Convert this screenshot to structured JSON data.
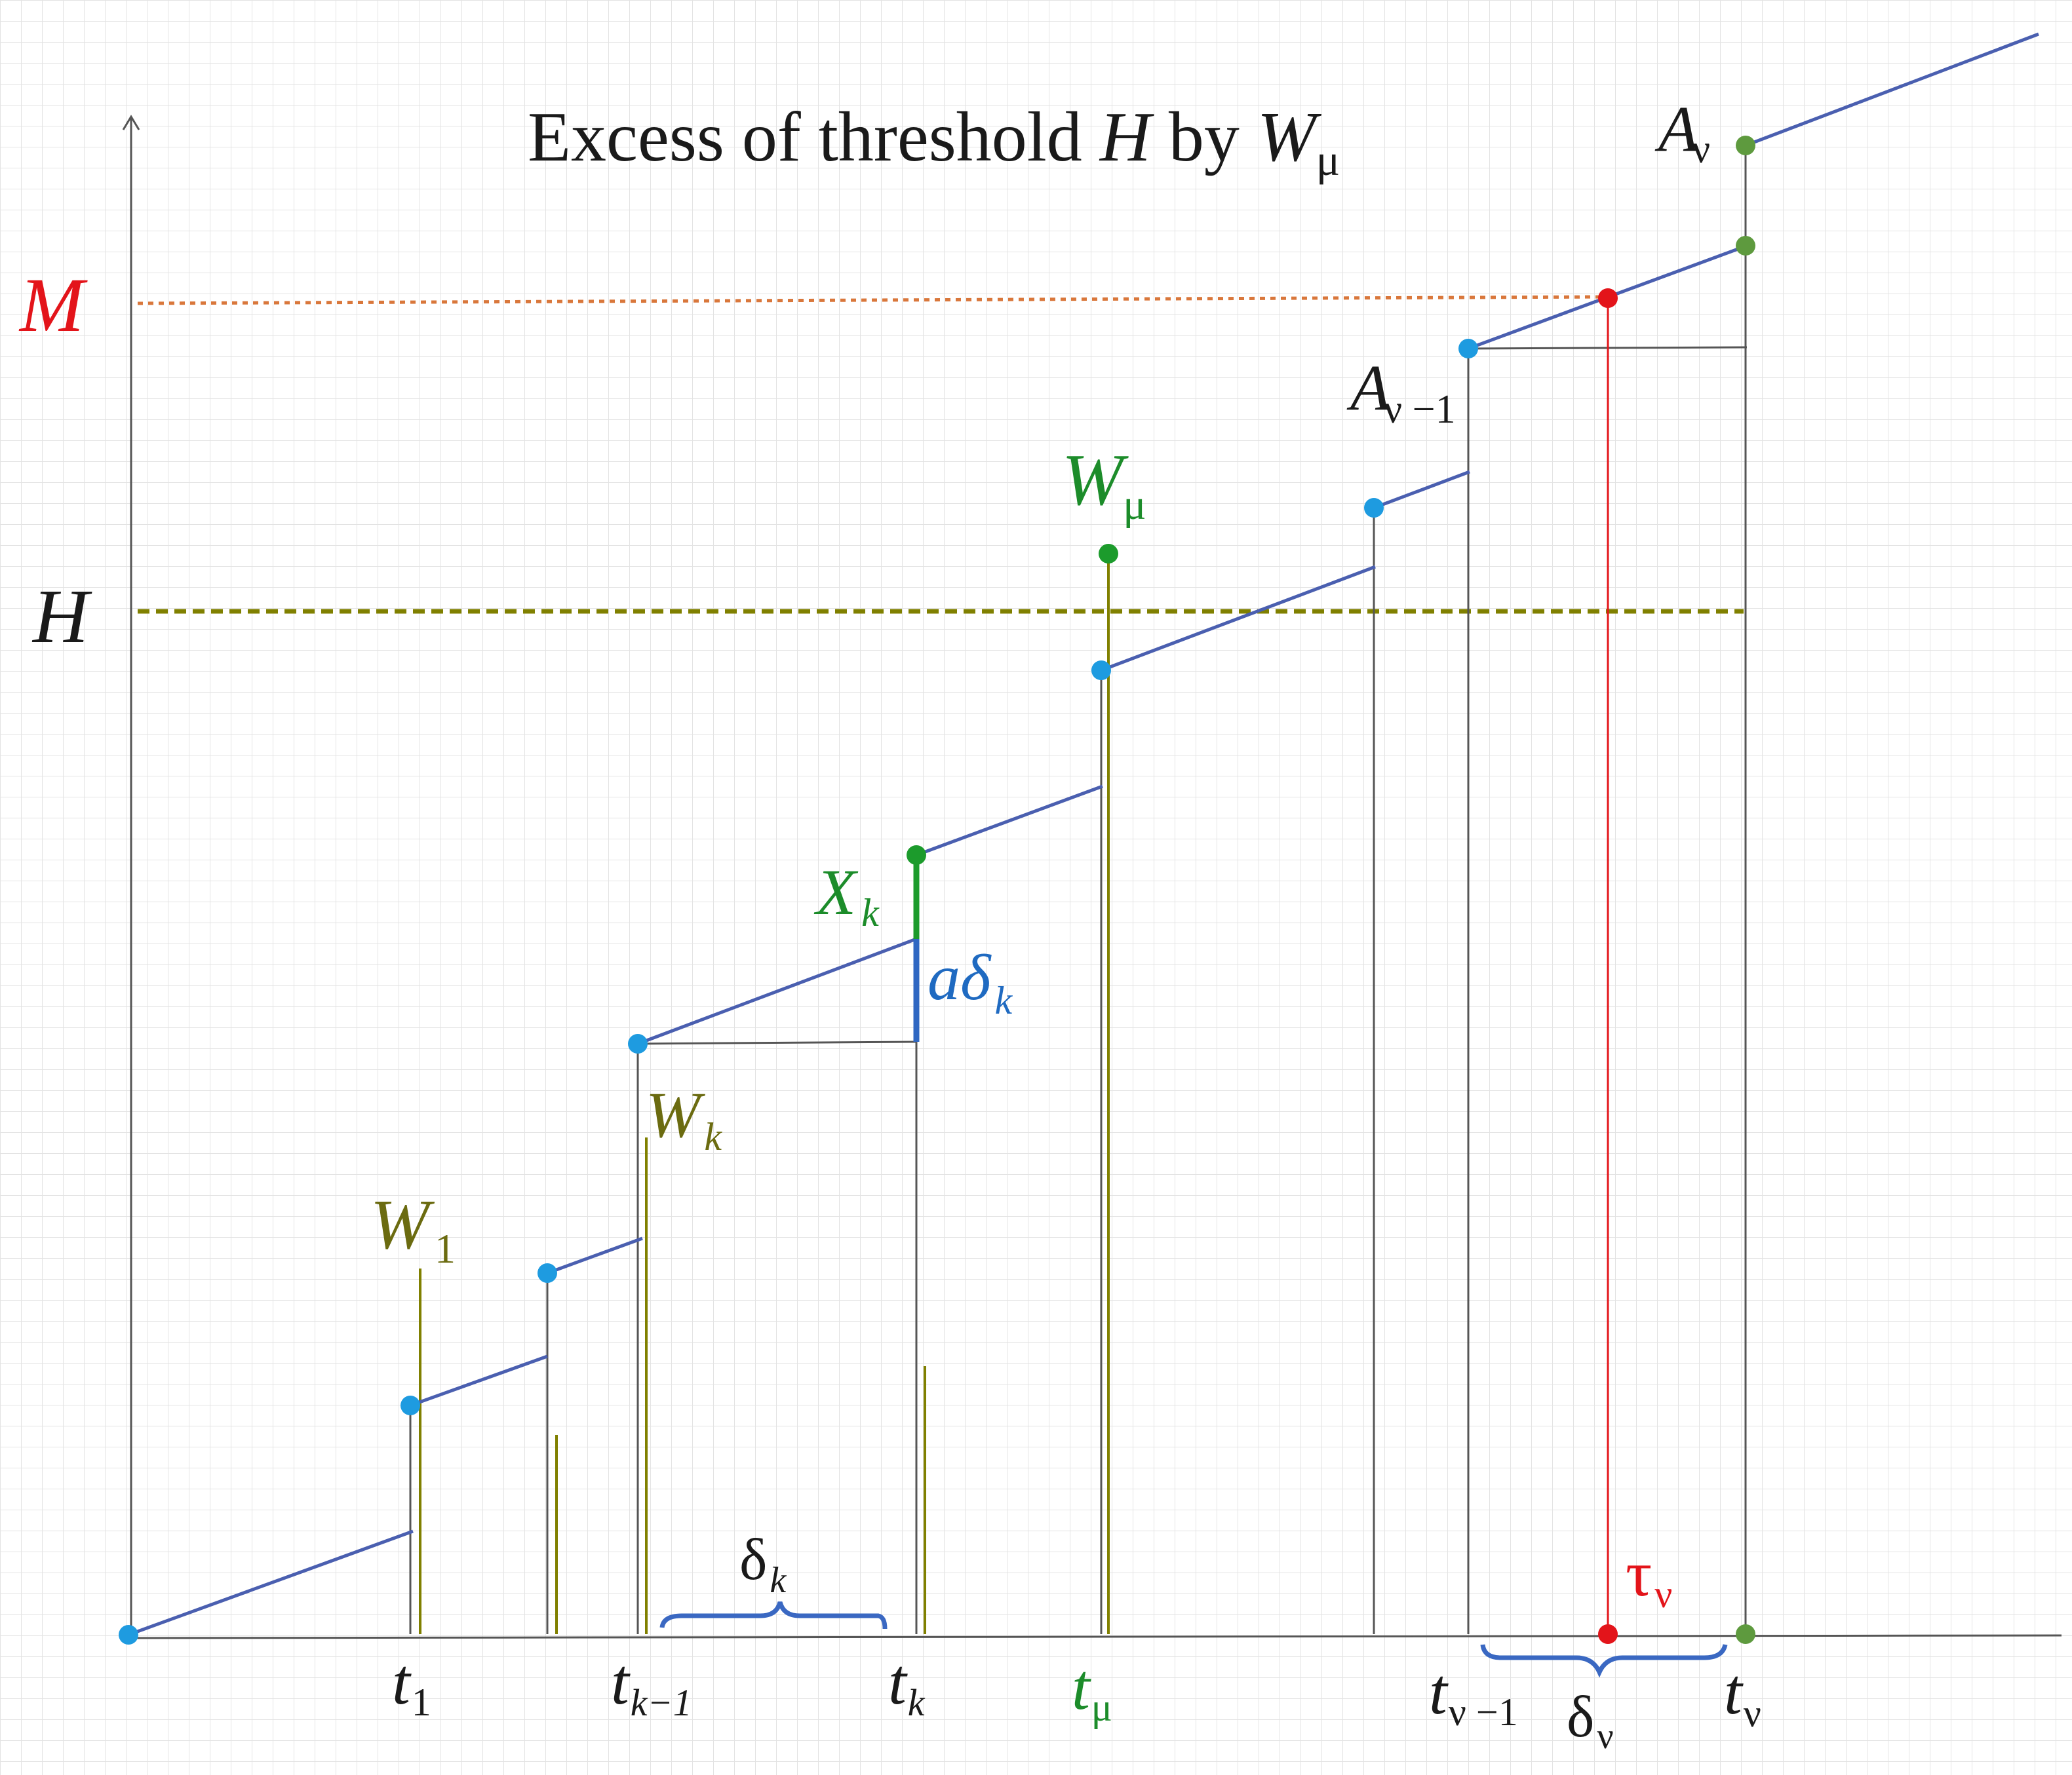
{
  "title": {
    "text_prefix": "Excess of threshold ",
    "var_h": "H",
    "text_mid": " by ",
    "var_w": "W",
    "sub_mu": "μ"
  },
  "colors": {
    "grid": "#dcdcdc",
    "axis": "#555555",
    "path": "#4a5fb0",
    "marker_blue": "#1e9be0",
    "marker_green": "#2e9b3c",
    "marker_green_dark": "#5e9a3e",
    "red": "#e3141a",
    "olive": "#808000",
    "olive_text": "#6b6b10",
    "orange_dotted": "#d9773b",
    "text_dark": "#1a1a1a",
    "green_text": "#1c8c2a",
    "blue_text": "#1f6ac1",
    "brace": "#3a68c2"
  },
  "labels": {
    "M": "M",
    "H": "H",
    "A_nu": {
      "base": "A",
      "sub": "ν"
    },
    "A_nu_minus_1": {
      "base": "A",
      "sub": "ν −1"
    },
    "W_mu": {
      "base": "W",
      "sub": "μ"
    },
    "X_k": {
      "base": "X",
      "sub": "k"
    },
    "a_delta_k": {
      "base": "aδ",
      "sub": "k"
    },
    "W_k": {
      "base": "W",
      "sub": "k"
    },
    "W_1": {
      "base": "W",
      "sub": "1"
    },
    "delta_k": {
      "base": "δ",
      "sub": "k"
    },
    "tau_nu": {
      "base": "τ",
      "sub": "ν"
    },
    "delta_nu": {
      "base": "δ",
      "sub": "ν"
    },
    "t_1": {
      "base": "t",
      "sub": "1"
    },
    "t_k_minus_1": {
      "base": "t",
      "sub": "k−1"
    },
    "t_k": {
      "base": "t",
      "sub": "k"
    },
    "t_mu": {
      "base": "t",
      "sub": "μ"
    },
    "t_nu_minus_1": {
      "base": "t",
      "sub": "ν −1"
    },
    "t_nu": {
      "base": "t",
      "sub": "ν"
    }
  }
}
